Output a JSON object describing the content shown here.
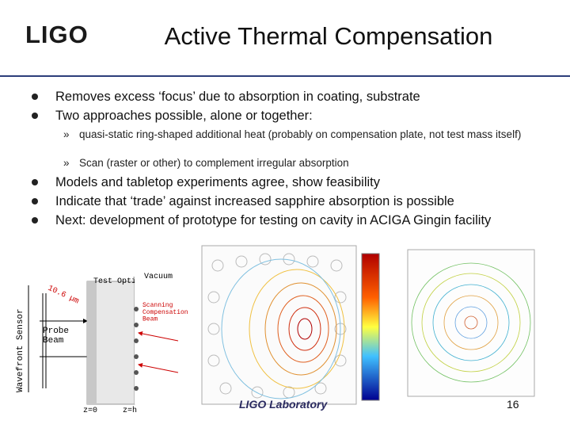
{
  "header": {
    "logo": "LIGO",
    "title": "Active Thermal Compensation"
  },
  "bullets": [
    "Removes excess ‘focus’ due to absorption in coating, substrate",
    "Two approaches possible, alone or together:"
  ],
  "sub_bullets": [
    {
      "marker": "»",
      "text": "quasi-static ring-shaped additional heat (probably on compensation plate, not test mass itself)"
    },
    {
      "marker": "»",
      "text": "Scan (raster or other) to complement irregular absorption"
    }
  ],
  "bullets2": [
    "Models and tabletop experiments agree, show feasibility",
    "Indicate that ‘trade’ against increased sapphire absorption is possible",
    "Next: development of prototype for testing on cavity in ACIGA Gingin facility"
  ],
  "diagram": {
    "vacuum": "Vacuum",
    "test_optic": "Test Optic",
    "sensor": "Wavefront Sensor",
    "probe": "Probe\nBeam",
    "scanning": "Scanning\nCompensation\nBeam",
    "laser": "10.6 µm",
    "z0": "z=0",
    "zh": "z=h"
  },
  "footer": {
    "lab": "LIGO Laboratory",
    "page": "16"
  }
}
